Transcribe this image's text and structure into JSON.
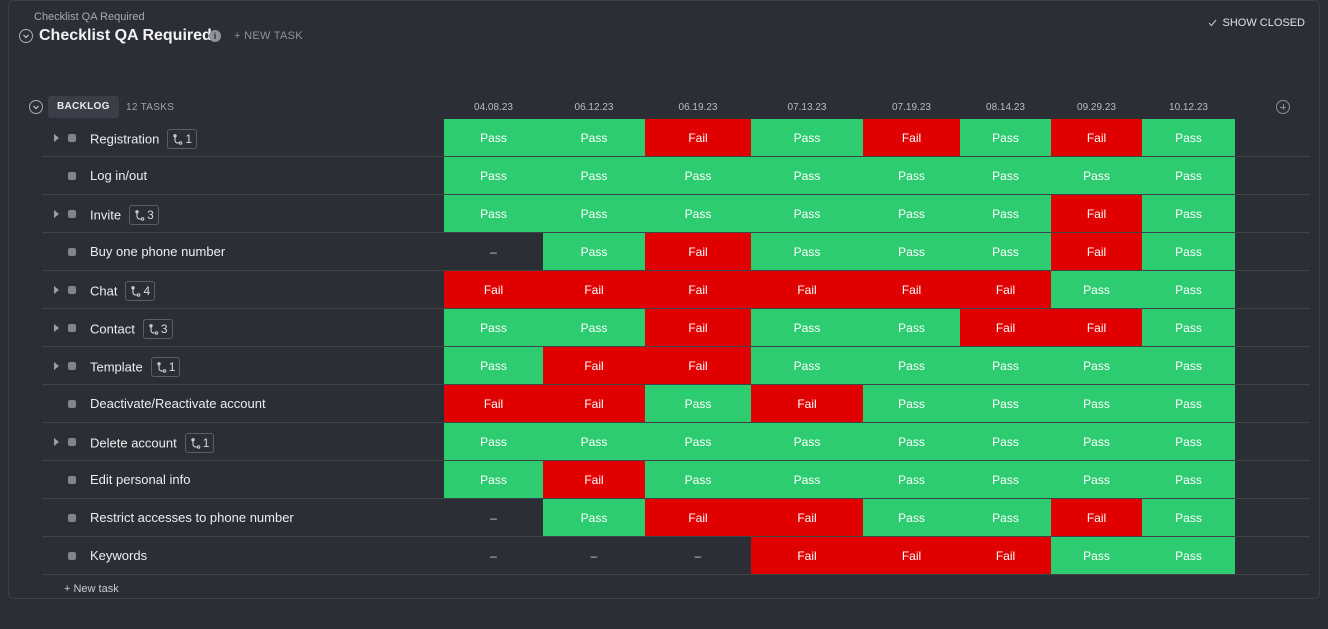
{
  "breadcrumb": "Checklist QA Required",
  "title": "Checklist QA Required",
  "new_task_top": "+ NEW TASK",
  "show_closed": "SHOW CLOSED",
  "group": {
    "label": "BACKLOG",
    "count": "12 TASKS"
  },
  "dates": [
    "04.08.23",
    "06.12.23",
    "06.19.23",
    "07.13.23",
    "07.19.23",
    "08.14.23",
    "09.29.23",
    "10.12.23"
  ],
  "colors": {
    "pass": "#2ecc71",
    "fail": "#e00000"
  },
  "tasks": [
    {
      "name": "Registration",
      "subtasks": "1",
      "expandable": true,
      "results": [
        "Pass",
        "Pass",
        "Fail",
        "Pass",
        "Fail",
        "Pass",
        "Fail",
        "Pass"
      ]
    },
    {
      "name": "Log in/out",
      "subtasks": null,
      "expandable": false,
      "results": [
        "Pass",
        "Pass",
        "Pass",
        "Pass",
        "Pass",
        "Pass",
        "Pass",
        "Pass"
      ]
    },
    {
      "name": "Invite",
      "subtasks": "3",
      "expandable": true,
      "results": [
        "Pass",
        "Pass",
        "Pass",
        "Pass",
        "Pass",
        "Pass",
        "Fail",
        "Pass"
      ]
    },
    {
      "name": "Buy one phone number",
      "subtasks": null,
      "expandable": false,
      "results": [
        "–",
        "Pass",
        "Fail",
        "Pass",
        "Pass",
        "Pass",
        "Fail",
        "Pass"
      ]
    },
    {
      "name": "Chat",
      "subtasks": "4",
      "expandable": true,
      "results": [
        "Fail",
        "Fail",
        "Fail",
        "Fail",
        "Fail",
        "Fail",
        "Pass",
        "Pass"
      ]
    },
    {
      "name": "Contact",
      "subtasks": "3",
      "expandable": true,
      "results": [
        "Pass",
        "Pass",
        "Fail",
        "Pass",
        "Pass",
        "Fail",
        "Fail",
        "Pass"
      ]
    },
    {
      "name": "Template",
      "subtasks": "1",
      "expandable": true,
      "results": [
        "Pass",
        "Fail",
        "Fail",
        "Pass",
        "Pass",
        "Pass",
        "Pass",
        "Pass"
      ]
    },
    {
      "name": "Deactivate/Reactivate account",
      "subtasks": null,
      "expandable": false,
      "results": [
        "Fail",
        "Fail",
        "Pass",
        "Fail",
        "Pass",
        "Pass",
        "Pass",
        "Pass"
      ]
    },
    {
      "name": "Delete account",
      "subtasks": "1",
      "expandable": true,
      "results": [
        "Pass",
        "Pass",
        "Pass",
        "Pass",
        "Pass",
        "Pass",
        "Pass",
        "Pass"
      ]
    },
    {
      "name": "Edit personal info",
      "subtasks": null,
      "expandable": false,
      "results": [
        "Pass",
        "Fail",
        "Pass",
        "Pass",
        "Pass",
        "Pass",
        "Pass",
        "Pass"
      ]
    },
    {
      "name": "Restrict accesses to phone number",
      "subtasks": null,
      "expandable": false,
      "results": [
        "–",
        "Pass",
        "Fail",
        "Fail",
        "Pass",
        "Pass",
        "Fail",
        "Pass"
      ]
    },
    {
      "name": "Keywords",
      "subtasks": null,
      "expandable": false,
      "results": [
        "–",
        "–",
        "–",
        "Fail",
        "Fail",
        "Fail",
        "Pass",
        "Pass"
      ]
    }
  ],
  "new_task_bottom": "+ New task"
}
